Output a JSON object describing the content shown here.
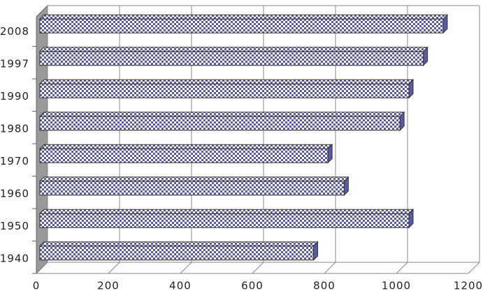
{
  "chart_data": {
    "type": "bar",
    "orientation": "horizontal",
    "categories": [
      "1940",
      "1950",
      "1960",
      "1970",
      "1980",
      "1990",
      "1997",
      "2008"
    ],
    "values": [
      770,
      1035,
      855,
      810,
      1010,
      1035,
      1075,
      1130
    ],
    "color": "#5a5aa0",
    "xlim": [
      0,
      1200
    ],
    "xticks": [
      0,
      200,
      400,
      600,
      800,
      1000,
      1200
    ],
    "grid": true
  }
}
